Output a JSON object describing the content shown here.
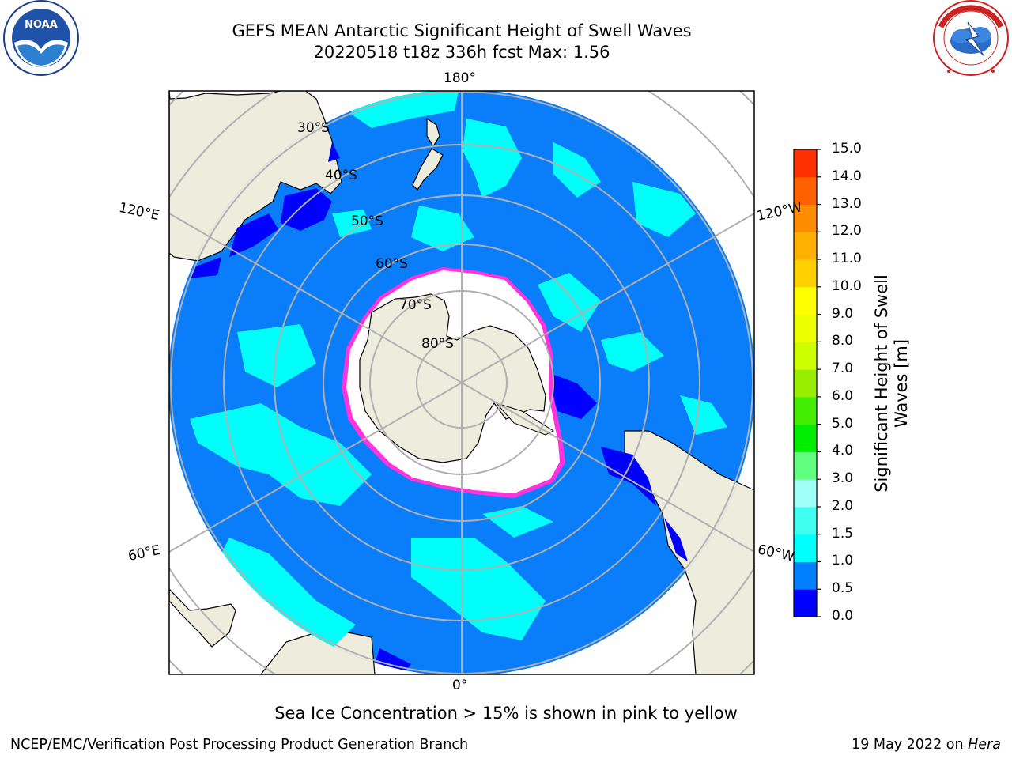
{
  "title_line1": "GEFS MEAN Antarctic Significant Height of Swell Waves",
  "title_line2": "20220518 t18z 336h fcst   Max: 1.56",
  "logos": {
    "left": "noaa-logo",
    "right": "national-weather-service-logo",
    "left_text": "NOAA",
    "right_text": "NATIONAL WEATHER SERVICE"
  },
  "map": {
    "projection": "south-polar-stereographic",
    "lon_labels": {
      "top": "180°",
      "bottom": "0°",
      "left_upper": "120°E",
      "right_upper": "120°W",
      "left_lower": "60°E",
      "right_lower": "60°W"
    },
    "lat_labels": [
      "30°S",
      "40°S",
      "50°S",
      "60°S",
      "70°S",
      "80°S"
    ],
    "colors": {
      "ocean_main": "#0a7dfa",
      "land": "#eeecdc",
      "ice_free_white": "#ffffff",
      "cyan": "#00fffa",
      "dark_blue": "#0000ff",
      "ice_edge_pink": "#ff33dd",
      "grid": "#b0b0b0"
    }
  },
  "colorbar": {
    "label": "Significant Height of Swell\nWaves [m]",
    "label_line1": "Significant Height of Swell",
    "label_line2": "Waves [m]",
    "ticks": [
      "0.0",
      "0.5",
      "1.0",
      "1.5",
      "2.0",
      "3.0",
      "4.0",
      "5.0",
      "6.0",
      "7.0",
      "8.0",
      "9.0",
      "10.0",
      "11.0",
      "12.0",
      "13.0",
      "14.0",
      "15.0"
    ],
    "colors": [
      "#0000ff",
      "#0080ff",
      "#00ffff",
      "#40fff0",
      "#a0fff8",
      "#60ff80",
      "#00ee00",
      "#44ee00",
      "#99ee00",
      "#ccff00",
      "#eeff00",
      "#ffff00",
      "#ffd000",
      "#ffb000",
      "#ff8c00",
      "#ff6000",
      "#ff3000"
    ]
  },
  "subtitle": "Sea Ice Concentration > 15% is shown in pink to yellow",
  "footer_left": "NCEP/EMC/Verification Post Processing Product Generation Branch",
  "footer_date": "19 May 2022 on ",
  "footer_machine": "Hera"
}
